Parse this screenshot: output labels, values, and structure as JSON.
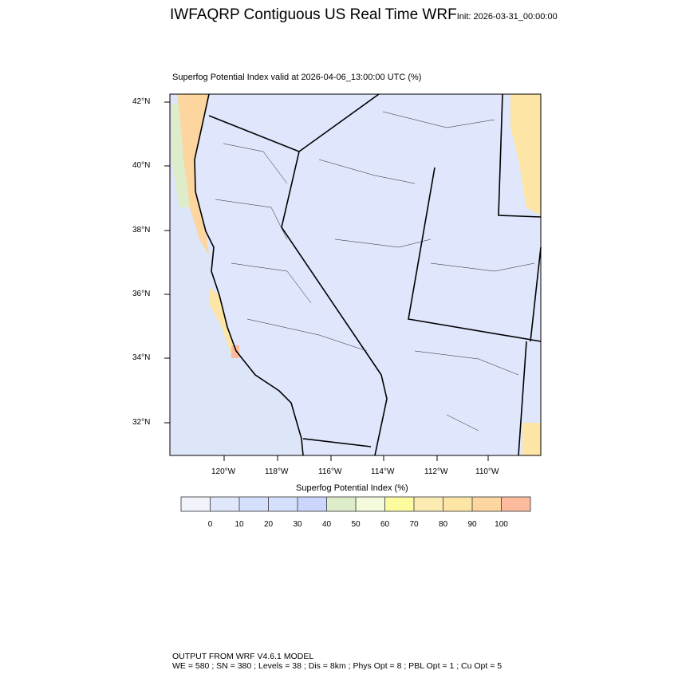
{
  "title": {
    "main": "IWFAQRP Contiguous US Real Time WRF",
    "init": "Init: 2026-03-31_00:00:00"
  },
  "subtitle": "Superfog Potential Index valid at 2026-04-06_13:00:00 UTC   (%)",
  "map": {
    "lat_ticks": [
      "42°N",
      "40°N",
      "38°N",
      "36°N",
      "34°N",
      "32°N"
    ],
    "lon_ticks": [
      "120°W",
      "118°W",
      "116°W",
      "114°W",
      "112°W",
      "110°W"
    ],
    "background_color": "#e0e6fc",
    "ocean_color": "#dde5f8"
  },
  "colorbar": {
    "title": "Superfog Potential Index  (%)",
    "labels": [
      "0",
      "10",
      "20",
      "30",
      "40",
      "50",
      "60",
      "70",
      "80",
      "90",
      "100"
    ],
    "colors": [
      "#f0f3fa",
      "#e0e7fc",
      "#d5e0fc",
      "#d5e0fc",
      "#ccd5fc",
      "#ddecc9",
      "#f4fbdc",
      "#fcfb9e",
      "#fdebb4",
      "#fde6a5",
      "#fdd59f",
      "#fdbb9d"
    ]
  },
  "footer": {
    "line1": "OUTPUT FROM WRF V4.6.1 MODEL",
    "line2": "WE = 580 ; SN = 380 ; Levels = 38 ; Dis = 8km ; Phys Opt = 8 ; PBL Opt = 1 ; Cu Opt = 5"
  }
}
